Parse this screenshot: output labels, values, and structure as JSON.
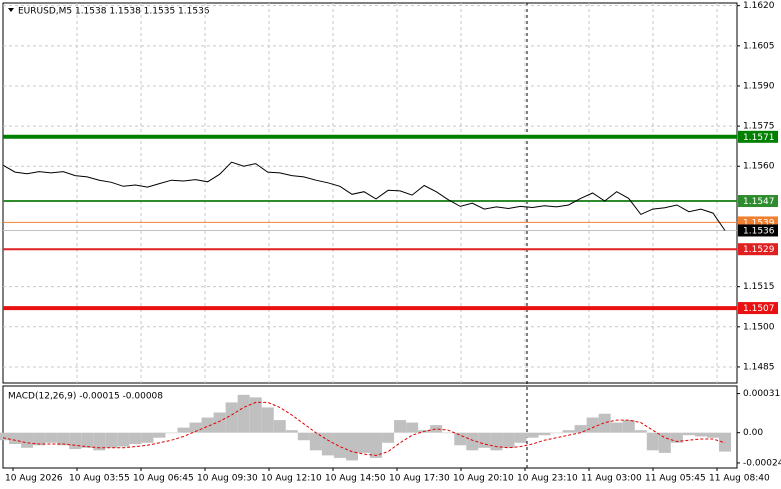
{
  "chart_data": {
    "type": "line",
    "title": "EURUSD,M5  1.1538 1.1538 1.1535 1.1536",
    "color": "#000000",
    "values": [
      1.15604,
      1.15578,
      1.15572,
      1.1558,
      1.15575,
      1.1558,
      1.15565,
      1.1556,
      1.15548,
      1.1554,
      1.15525,
      1.1553,
      1.15522,
      1.15535,
      1.15548,
      1.15545,
      1.1555,
      1.15542,
      1.1557,
      1.15615,
      1.156,
      1.1561,
      1.15578,
      1.15575,
      1.15565,
      1.1556,
      1.15548,
      1.15538,
      1.15525,
      1.15495,
      1.15505,
      1.15478,
      1.1551,
      1.15508,
      1.15492,
      1.15528,
      1.15505,
      1.15475,
      1.1545,
      1.15462,
      1.1544,
      1.15448,
      1.15442,
      1.1545,
      1.15446,
      1.15452,
      1.15448,
      1.15455,
      1.1548,
      1.155,
      1.1547,
      1.15505,
      1.1548,
      1.1542,
      1.1544,
      1.15445,
      1.15455,
      1.1543,
      1.1544,
      1.15425,
      1.1536
    ],
    "ylim": [
      1.1479,
      1.1621
    ],
    "yticks": [
      {
        "value": 1.162,
        "label": "1.1620"
      },
      1.1605,
      {
        "value": 1.159,
        "label": "1.1590"
      },
      1.1575,
      {
        "value": 1.156,
        "label": "1.1560"
      },
      1.1515,
      {
        "value": 1.15,
        "label": "1.1500"
      },
      1.1485
    ],
    "grid": true,
    "xlabels": [
      "10 Aug 2026",
      "10 Aug 03:55",
      "10 Aug 06:45",
      "10 Aug 09:30",
      "10 Aug 12:10",
      "10 Aug 14:50",
      "10 Aug 17:30",
      "10 Aug 20:10",
      "10 Aug 23:10",
      "11 Aug 03:00",
      "11 Aug 05:45",
      "11 Aug 08:40"
    ],
    "levels": [
      {
        "value": 1.1571,
        "color": "#008000",
        "style": "thick"
      },
      {
        "value": 1.1547,
        "color": "#2e8b2e",
        "style": "thin"
      },
      {
        "value": 1.1539,
        "color": "#f08030",
        "style": "hair"
      },
      {
        "value": 1.1536,
        "color": "#c0c0c0",
        "style": "current"
      },
      {
        "value": 1.1529,
        "color": "#e02020",
        "style": "thin"
      },
      {
        "value": 1.1507,
        "color": "#e81010",
        "style": "thick"
      }
    ],
    "macd": {
      "label": "MACD(12,26,9) -0.00015 -0.00008",
      "ylim": [
        -0.00028,
        0.00037
      ],
      "yticks": [
        0.00031,
        {
          "value": 0,
          "label": "0.00"
        },
        -0.00024
      ],
      "histogram_color": "#c0c0c0",
      "signal_color": "#e00000",
      "histogram": [
        -6e-05,
        -9e-05,
        -0.00012,
        -0.0001,
        -8e-05,
        -0.0001,
        -0.00013,
        -0.00012,
        -0.00014,
        -0.00012,
        -0.00011,
        -9e-05,
        -8e-05,
        -4e-05,
        0.0,
        4e-05,
        8e-05,
        0.00012,
        0.00016,
        0.00024,
        0.0003,
        0.00028,
        0.0002,
        0.0001,
        2e-05,
        -6e-05,
        -0.00014,
        -0.00018,
        -0.0002,
        -0.00022,
        -0.00016,
        -0.0002,
        -8e-05,
        0.0001,
        8e-05,
        2e-05,
        6e-05,
        0.0,
        -0.0001,
        -0.00014,
        -0.00012,
        -0.00014,
        -0.00012,
        -8e-05,
        -4e-05,
        -2e-05,
        0.0,
        2e-05,
        6e-05,
        0.00012,
        0.00015,
        8e-05,
        0.0001,
        2e-05,
        -0.00014,
        -0.00016,
        -8e-05,
        -2e-05,
        -3e-05,
        -4e-05,
        -0.00015
      ],
      "signal": [
        -4e-05,
        -6e-05,
        -8e-05,
        -9e-05,
        -9e-05,
        -9e-05,
        -0.0001,
        -0.00011,
        -0.00012,
        -0.00012,
        -0.00012,
        -0.00011,
        -0.0001,
        -8e-05,
        -6e-05,
        -3e-05,
        1e-05,
        5e-05,
        9e-05,
        0.00014,
        0.0002,
        0.00024,
        0.00024,
        0.0002,
        0.00014,
        7e-05,
        0.0,
        -6e-05,
        -0.00011,
        -0.00015,
        -0.00017,
        -0.00018,
        -0.00015,
        -8e-05,
        -2e-05,
        1e-05,
        3e-05,
        2e-05,
        -2e-05,
        -6e-05,
        -9e-05,
        -0.00011,
        -0.00012,
        -0.00011,
        -9e-05,
        -6e-05,
        -4e-05,
        -2e-05,
        0.0,
        4e-05,
        8e-05,
        0.0001,
        0.0001,
        8e-05,
        2e-05,
        -4e-05,
        -7e-05,
        -6e-05,
        -5e-05,
        -5e-05,
        -8e-05
      ]
    }
  }
}
